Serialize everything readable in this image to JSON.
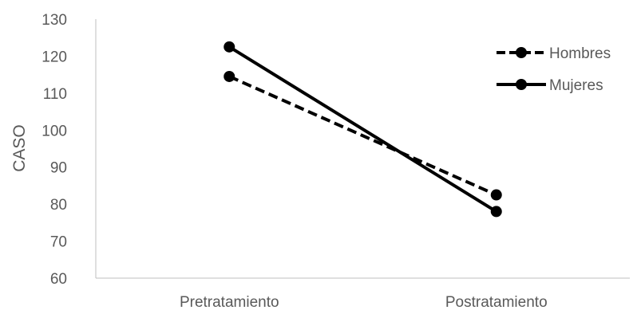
{
  "chart_data": {
    "type": "line",
    "categories": [
      "Pretratamiento",
      "Postratamiento"
    ],
    "ylabel": "CASO",
    "xlabel": "",
    "ylim": [
      60,
      130
    ],
    "yticks": [
      60,
      70,
      80,
      90,
      100,
      110,
      120,
      130
    ],
    "grid": false,
    "legend_position": "top-right",
    "series": [
      {
        "name": "Hombres",
        "values": [
          114.5,
          82.5
        ],
        "line_style": "dashed",
        "color": "#000000"
      },
      {
        "name": "Mujeres",
        "values": [
          122.5,
          78
        ],
        "line_style": "solid",
        "color": "#000000"
      }
    ]
  }
}
